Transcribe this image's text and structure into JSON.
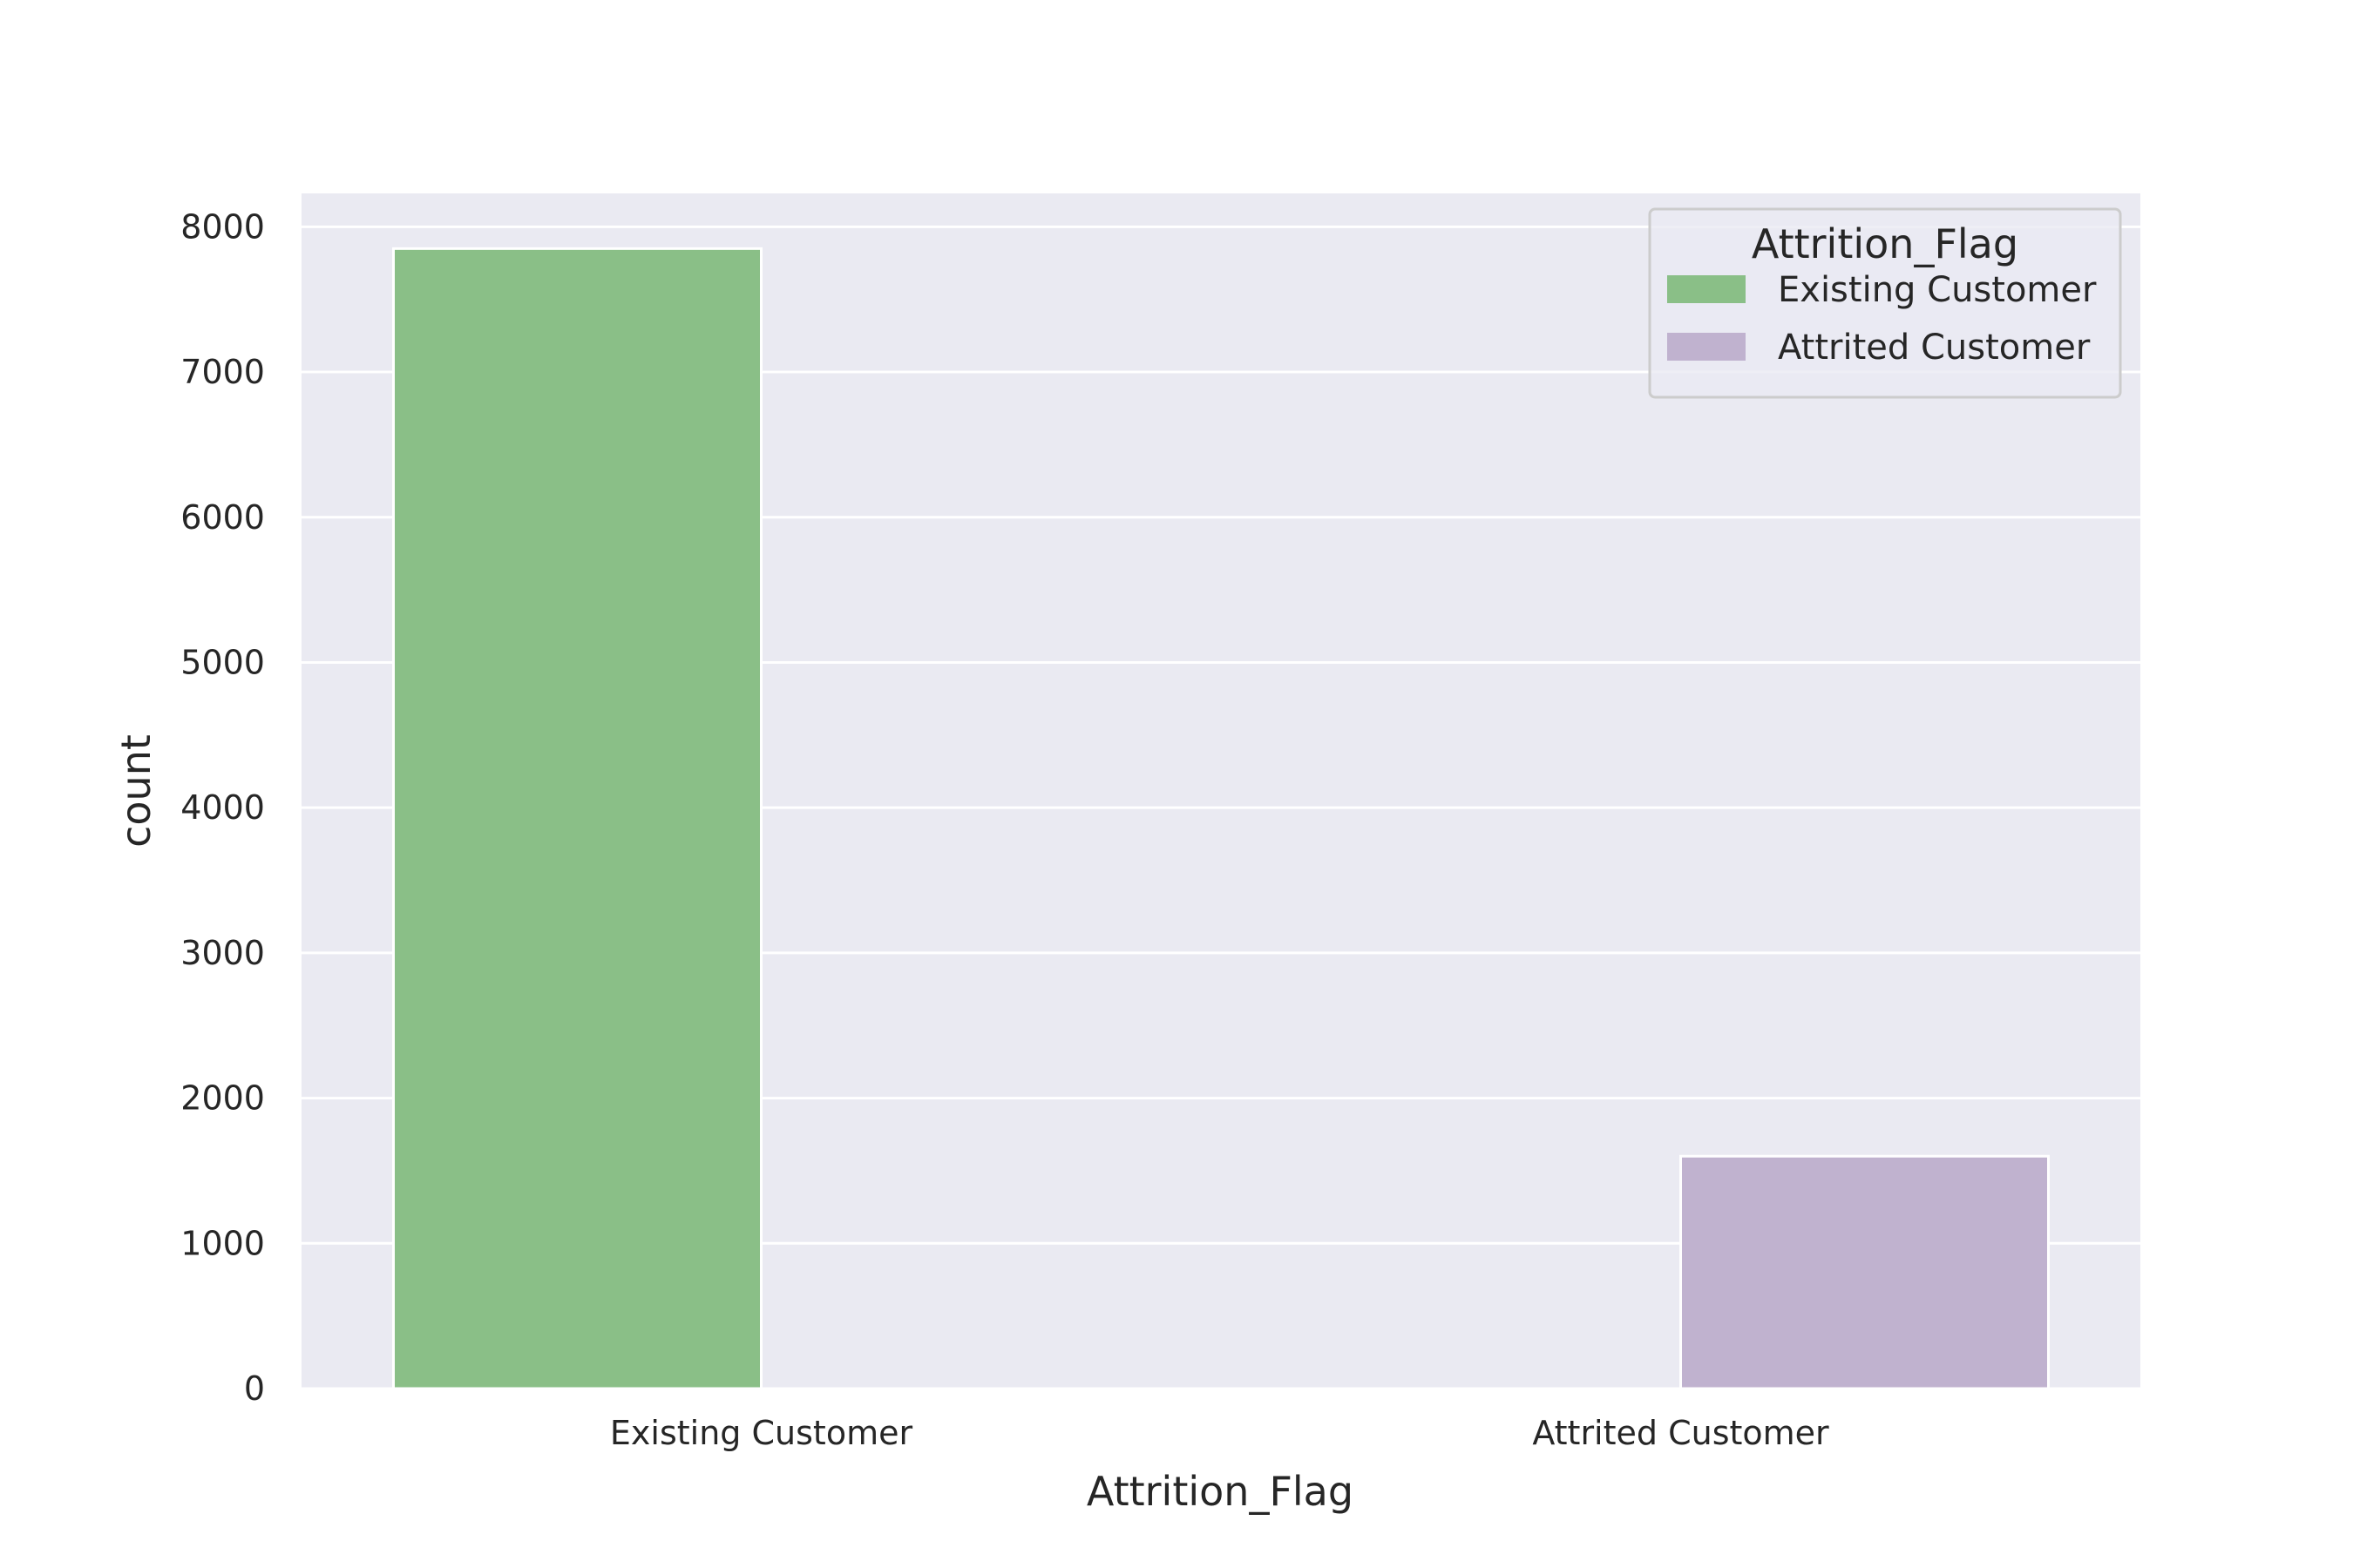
{
  "chart_data": {
    "type": "bar",
    "xlabel": "Attrition_Flag",
    "ylabel": "count",
    "categories": [
      "Existing Customer",
      "Attrited Customer"
    ],
    "series": [
      {
        "name": "Existing Customer",
        "values": [
          7850,
          0
        ],
        "color": "#8abf87"
      },
      {
        "name": "Attrited Customer",
        "values": [
          0,
          1600
        ],
        "color": "#c0b2cf"
      }
    ],
    "ylim": [
      0,
      8230
    ],
    "yticks": [
      0,
      1000,
      2000,
      3000,
      4000,
      5000,
      6000,
      7000,
      8000
    ],
    "grid": true,
    "legend": {
      "title": "Attrition_Flag",
      "placement": "top-right"
    },
    "background": "#eaeaf2",
    "grid_color": "#ffffff"
  }
}
